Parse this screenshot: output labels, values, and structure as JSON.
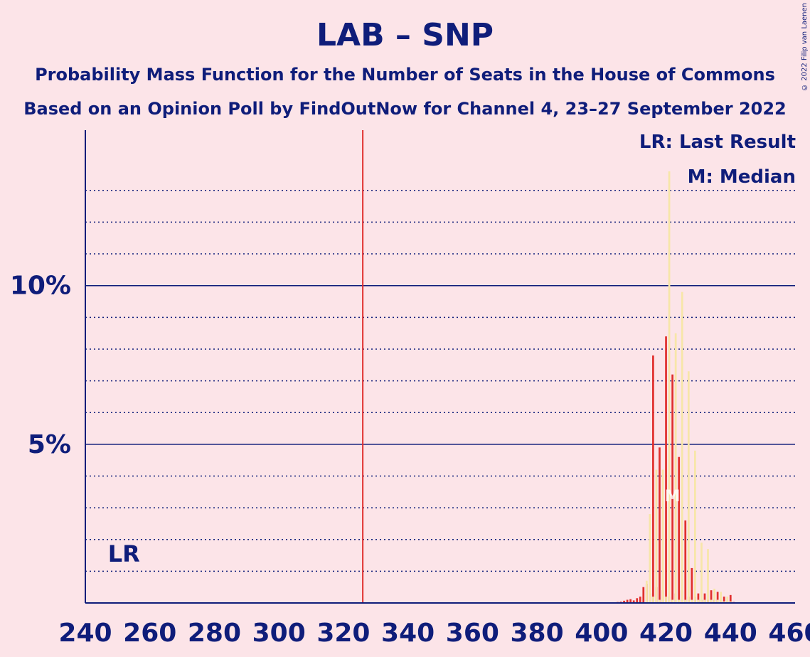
{
  "title": "LAB – SNP",
  "subtitle_1": "Probability Mass Function for the Number of Seats in the House of Commons",
  "subtitle_2": "Based on an Opinion Poll by FindOutNow for Channel 4, 23–27 September 2022",
  "copyright": "© 2022 Filip van Laenen",
  "legend": {
    "last_result": "LR: Last Result",
    "median": "M: Median"
  },
  "colors": {
    "background": "#fce4e8",
    "text": "#0f1d7a",
    "bar_primary": "#e0302e",
    "bar_secondary": "#f7e6a8",
    "majority_line": "#e0302e"
  },
  "chart_data": {
    "type": "bar",
    "xlim": [
      240,
      460
    ],
    "ylim": [
      0,
      14.9
    ],
    "x_ticks": [
      240,
      260,
      280,
      300,
      320,
      340,
      360,
      380,
      400,
      420,
      440,
      460
    ],
    "y_ticks_labeled": [
      {
        "value": 5,
        "label": "5%"
      },
      {
        "value": 10,
        "label": "10%"
      }
    ],
    "y_gridlines_dotted": [
      1,
      2,
      3,
      4,
      6,
      7,
      8,
      9,
      11,
      12,
      13
    ],
    "majority_line_x": 326,
    "last_result_x": 247,
    "last_result_label": "LR",
    "median_x": 422,
    "median_label": "M",
    "series": [
      {
        "style": "primary",
        "x": [
          404,
          405,
          406,
          407,
          408,
          409,
          410,
          411,
          412,
          413,
          414,
          415,
          416,
          417,
          418,
          419,
          420,
          421,
          422,
          423,
          424,
          425,
          426,
          427,
          428,
          429,
          430,
          431,
          432,
          433,
          434,
          435,
          436,
          437,
          438,
          439,
          440,
          441
        ],
        "values": [
          0.02,
          0.03,
          0.04,
          0.07,
          0.1,
          0.12,
          0.08,
          0.15,
          0.2,
          0.5,
          0.6,
          0.3,
          7.8,
          0.5,
          4.9,
          0.4,
          8.4,
          0.2,
          7.2,
          0.3,
          4.6,
          0.4,
          2.6,
          0.2,
          1.1,
          0.2,
          0.3,
          0.1,
          0.3,
          0.1,
          0.4,
          0.1,
          0.35,
          0.1,
          0.2,
          0.05,
          0.25,
          0.03
        ]
      },
      {
        "style": "secondary",
        "x": [
          414,
          415,
          416,
          417,
          418,
          419,
          420,
          421,
          422,
          423,
          424,
          425,
          426,
          427,
          428,
          429,
          430,
          431,
          432,
          433,
          434,
          435,
          436,
          437,
          438,
          439,
          440
        ],
        "values": [
          0.7,
          2.8,
          0.2,
          4.2,
          0.1,
          4.2,
          0.2,
          13.6,
          0.1,
          8.5,
          0.1,
          9.8,
          0.1,
          7.3,
          0.1,
          4.8,
          0.1,
          1.9,
          0.1,
          1.7,
          0.1,
          0.45,
          0.1,
          0.35,
          0.05,
          0.2,
          0.05
        ]
      }
    ]
  }
}
